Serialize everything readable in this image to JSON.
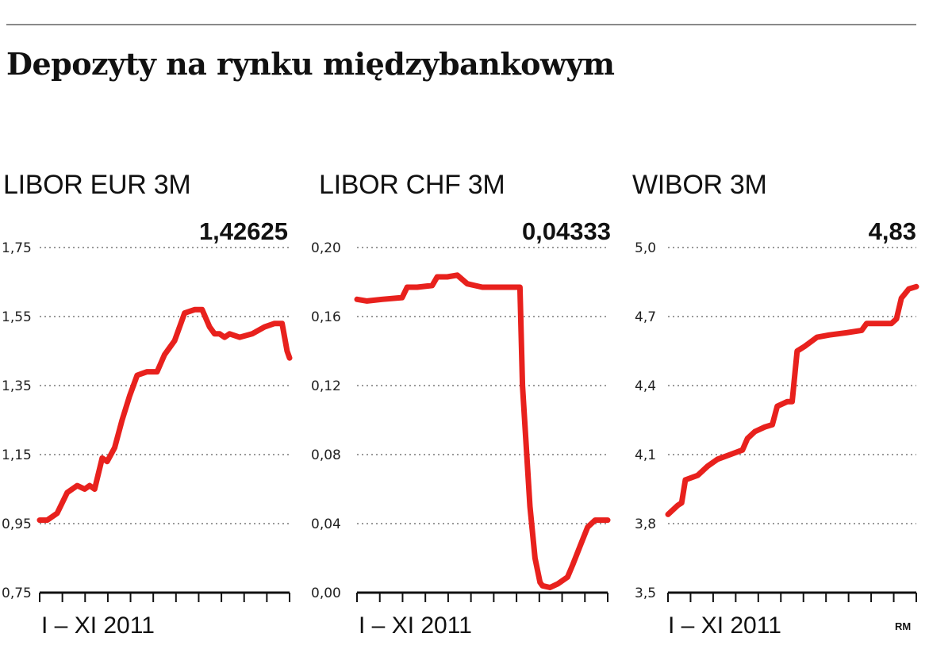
{
  "title": "Depozyty na rynku międzybankowym",
  "source_mark": "RM",
  "colors": {
    "line": "#e8211d",
    "grid": "#9a9a9a",
    "axis": "#111111"
  },
  "chart_data": [
    {
      "type": "line",
      "title": "LIBOR EUR 3M",
      "last_value_label": "1,42625",
      "period_label": "I – XI 2011",
      "ylim": [
        0.75,
        1.75
      ],
      "yticks": [
        0.75,
        0.95,
        1.15,
        1.35,
        1.55,
        1.75
      ],
      "ytick_labels": [
        "0,75",
        "0,95",
        "1,15",
        "1,35",
        "1,55",
        "1,75"
      ],
      "grid": true,
      "x": [
        0,
        0.03,
        0.07,
        0.11,
        0.15,
        0.18,
        0.2,
        0.22,
        0.25,
        0.27,
        0.3,
        0.33,
        0.36,
        0.39,
        0.43,
        0.47,
        0.5,
        0.54,
        0.58,
        0.62,
        0.65,
        0.68,
        0.7,
        0.72,
        0.74,
        0.76,
        0.8,
        0.85,
        0.9,
        0.94,
        0.97,
        0.99,
        1.0
      ],
      "values": [
        0.96,
        0.96,
        0.98,
        1.04,
        1.06,
        1.05,
        1.06,
        1.05,
        1.14,
        1.13,
        1.17,
        1.25,
        1.32,
        1.38,
        1.39,
        1.39,
        1.44,
        1.48,
        1.56,
        1.57,
        1.57,
        1.52,
        1.5,
        1.5,
        1.49,
        1.5,
        1.49,
        1.5,
        1.52,
        1.53,
        1.53,
        1.45,
        1.43
      ]
    },
    {
      "type": "line",
      "title": "LIBOR CHF 3M",
      "last_value_label": "0,04333",
      "period_label": "I – XI 2011",
      "ylim": [
        0.0,
        0.2
      ],
      "yticks": [
        0.0,
        0.04,
        0.08,
        0.12,
        0.16,
        0.2
      ],
      "ytick_labels": [
        "0,00",
        "0,04",
        "0,08",
        "0,12",
        "0,16",
        "0,20"
      ],
      "grid": true,
      "x": [
        0,
        0.04,
        0.1,
        0.18,
        0.2,
        0.24,
        0.3,
        0.32,
        0.36,
        0.4,
        0.44,
        0.47,
        0.5,
        0.55,
        0.6,
        0.65,
        0.66,
        0.69,
        0.71,
        0.73,
        0.74,
        0.77,
        0.8,
        0.84,
        0.86,
        0.89,
        0.92,
        0.95,
        0.98,
        1.0
      ],
      "values": [
        0.17,
        0.169,
        0.17,
        0.171,
        0.177,
        0.177,
        0.178,
        0.183,
        0.183,
        0.184,
        0.179,
        0.178,
        0.177,
        0.177,
        0.177,
        0.177,
        0.12,
        0.05,
        0.02,
        0.006,
        0.004,
        0.003,
        0.005,
        0.009,
        0.016,
        0.027,
        0.038,
        0.042,
        0.042,
        0.042
      ]
    },
    {
      "type": "line",
      "title": "WIBOR 3M",
      "last_value_label": "4,83",
      "period_label": "I – XI 2011",
      "ylim": [
        3.5,
        5.0
      ],
      "yticks": [
        3.5,
        3.8,
        4.1,
        4.4,
        4.7,
        5.0
      ],
      "ytick_labels": [
        "3,5",
        "3,8",
        "4,1",
        "4,4",
        "4,7",
        "5,0"
      ],
      "grid": true,
      "x": [
        0,
        0.04,
        0.055,
        0.07,
        0.12,
        0.16,
        0.2,
        0.25,
        0.3,
        0.32,
        0.35,
        0.39,
        0.42,
        0.44,
        0.48,
        0.5,
        0.52,
        0.55,
        0.6,
        0.65,
        0.72,
        0.78,
        0.8,
        0.85,
        0.9,
        0.92,
        0.94,
        0.97,
        1.0
      ],
      "values": [
        3.84,
        3.88,
        3.89,
        3.99,
        4.01,
        4.05,
        4.08,
        4.1,
        4.12,
        4.17,
        4.2,
        4.22,
        4.23,
        4.31,
        4.33,
        4.33,
        4.55,
        4.57,
        4.61,
        4.62,
        4.63,
        4.64,
        4.67,
        4.67,
        4.67,
        4.69,
        4.78,
        4.82,
        4.83
      ]
    }
  ]
}
